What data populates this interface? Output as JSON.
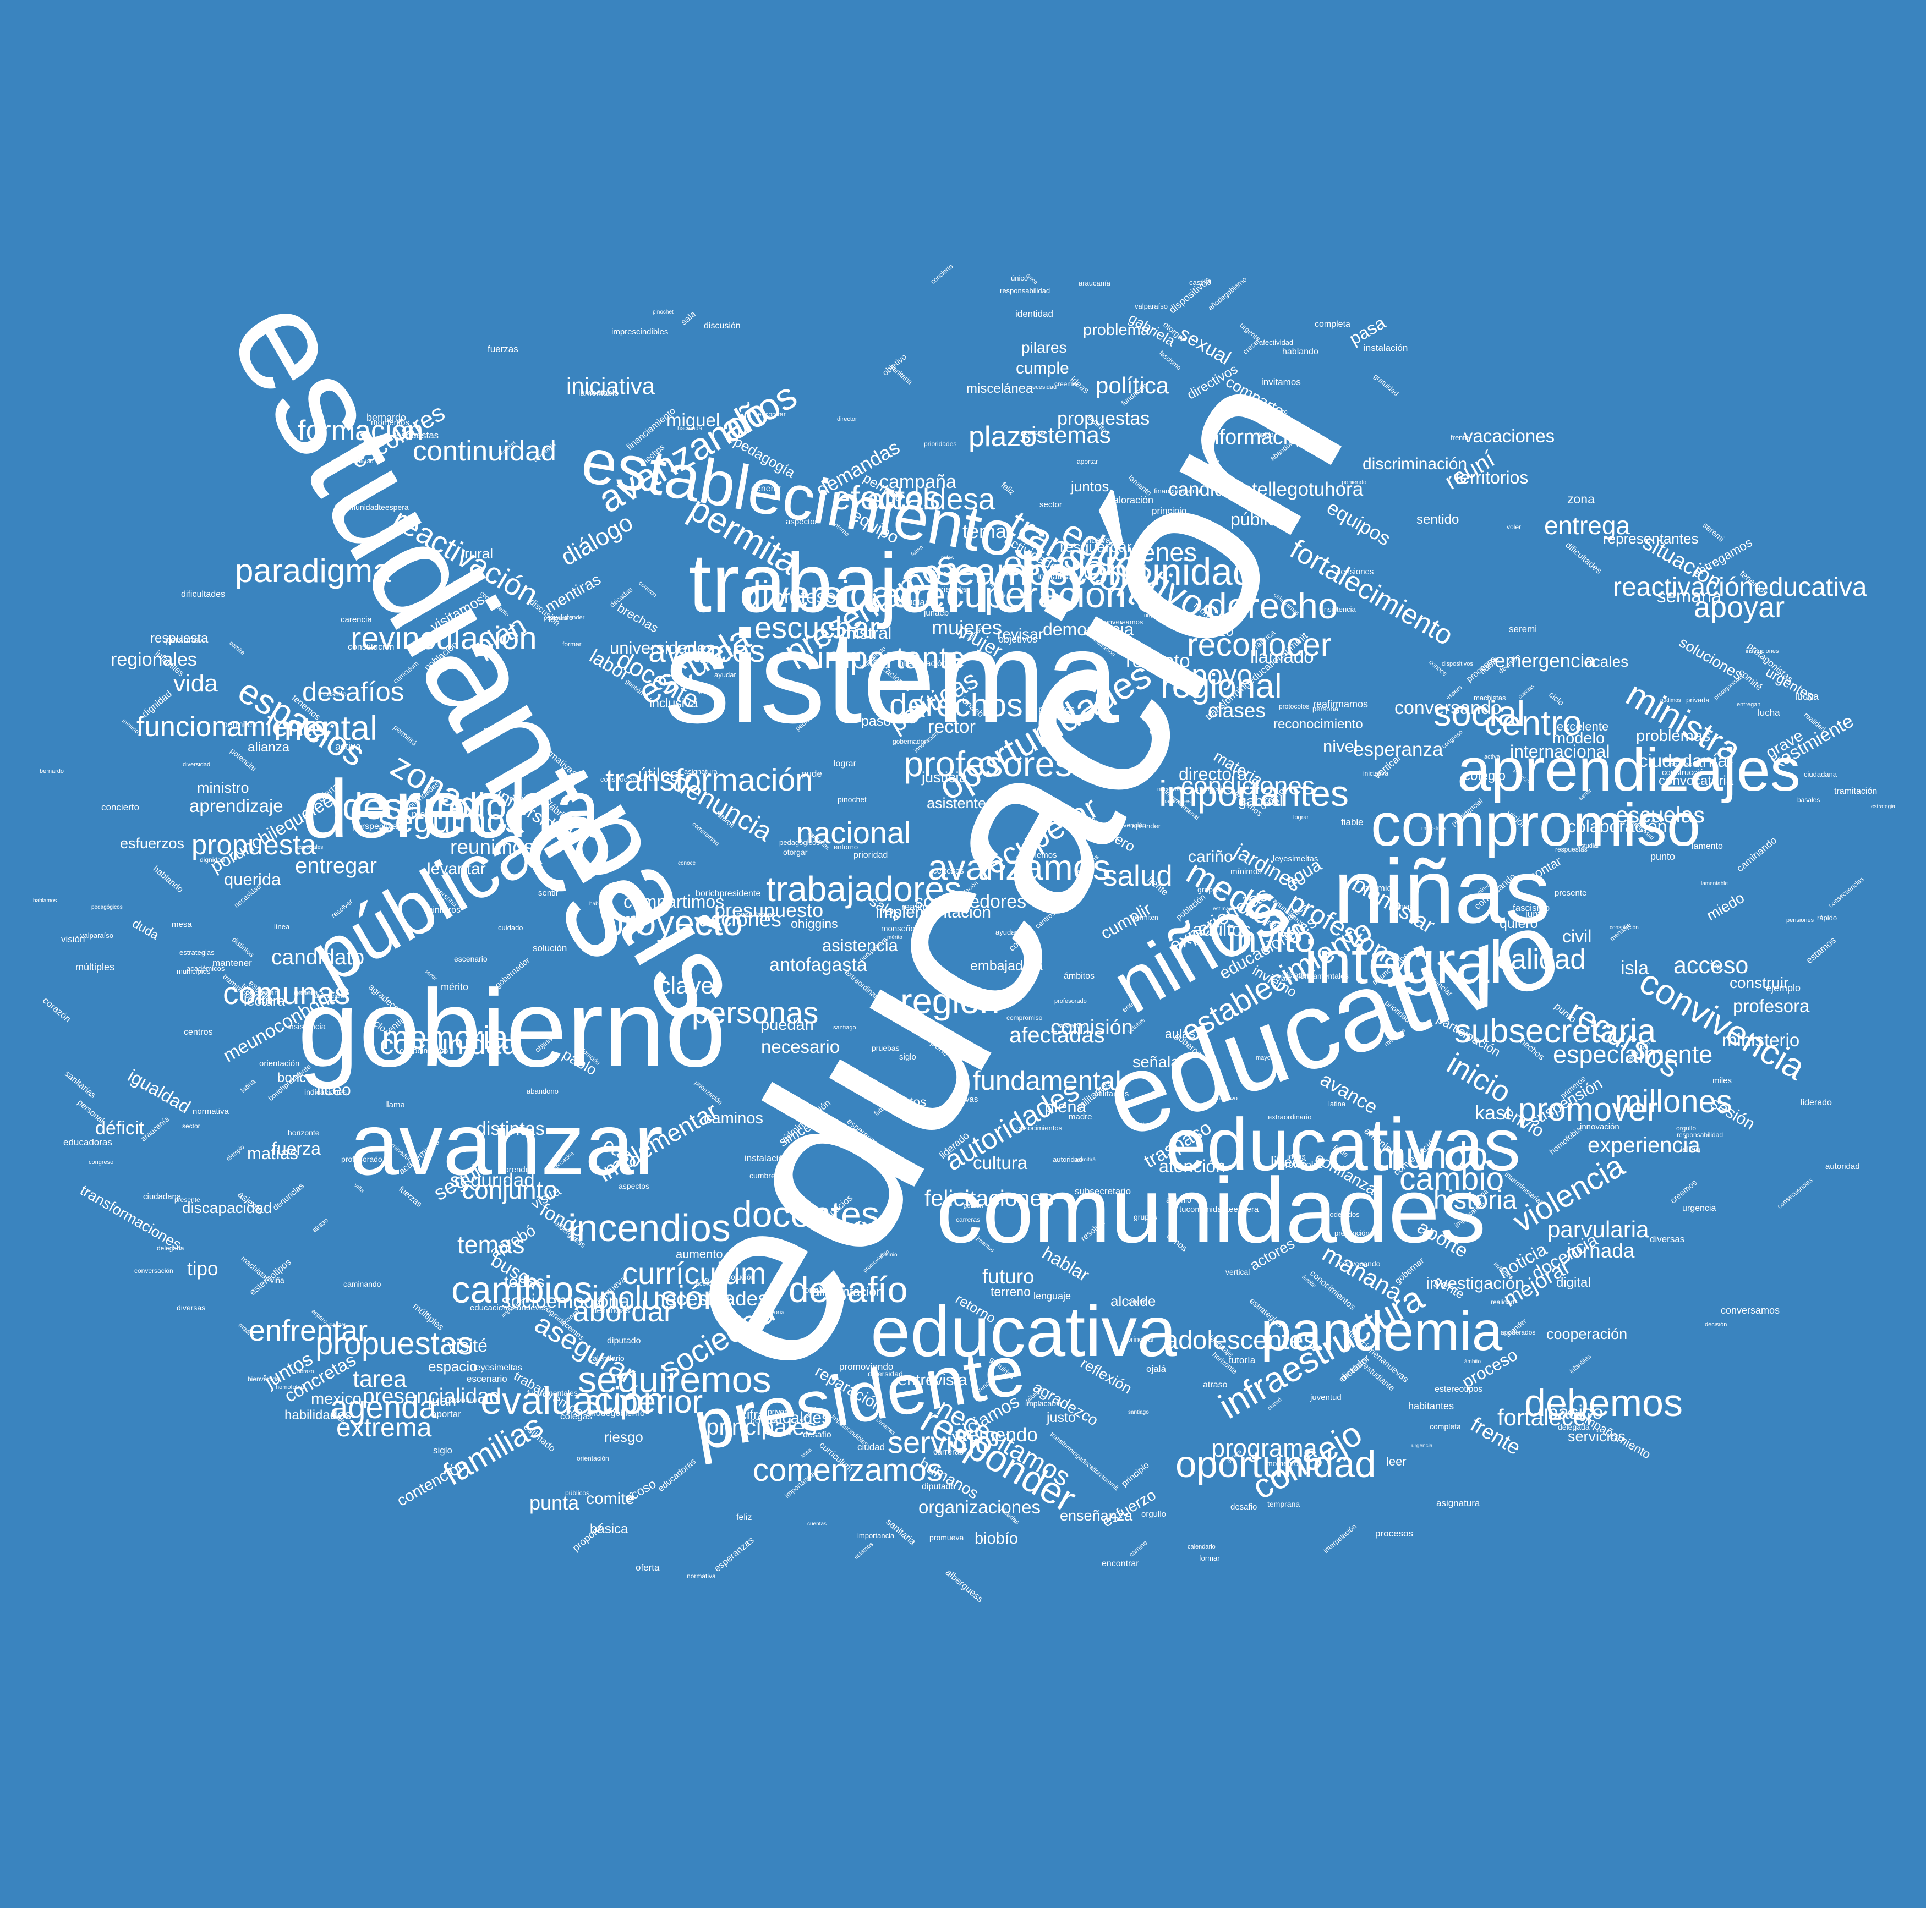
{
  "colors": {
    "background": "#3a84bf",
    "text": "#ffffff"
  },
  "title": "",
  "big_words": [
    "educación",
    "estudiantes",
    "sistema",
    "comunidades",
    "educativo",
    "gobierno",
    "país",
    "educativa",
    "niñas",
    "trabajando",
    "establecimientos",
    "avanzar",
    "derecha",
    "educativas",
    "pública",
    "presidente",
    "aprendizajes",
    "compromiso",
    "niños",
    "integral",
    "pandemia"
  ],
  "medium_words": [
    "extrema",
    "escolar",
    "reactivación",
    "desafíos",
    "desarrollo",
    "política",
    "proyecto",
    "acciones",
    "necesidades",
    "programa",
    "seguimos",
    "familias",
    "docentes",
    "infraestructura",
    "apoyo",
    "importante",
    "escuela",
    "escuelas",
    "personas",
    "educativos",
    "derecho",
    "reactivacióneducativa",
    "salud",
    "desafío",
    "mejorar",
    "años",
    "plan",
    "seguiremos",
    "profesores",
    "reunimos",
    "nacional",
    "debemos",
    "medidas",
    "derechos",
    "adolescentes",
    "autoridades",
    "afectadas",
    "superior",
    "candidato",
    "social",
    "sociedad",
    "ministra",
    "diálogo",
    "seguir",
    "políticas",
    "clases",
    "mundo",
    "formación",
    "inclusión",
    "entregar",
    "servicio",
    "entrega",
    "temas",
    "diversidad",
    "millones",
    "mañana",
    "jóvenes",
    "bienestar",
    "presentamos",
    "seamoscomunidad",
    "experiencia",
    "oportunidad",
    "comisión",
    "zonas",
    "avanzando",
    "región",
    "efectos",
    "vida",
    "conjunto",
    "calidad",
    "convivencia",
    "inicio",
    "consejo",
    "comunidad",
    "iniciativa",
    "fundamental",
    "abordar",
    "incendios",
    "fortalecer",
    "escuchar",
    "evaluación",
    "violencia",
    "paradigma",
    "escolares",
    "condiciones",
    "recursos",
    "necesitamos",
    "felicitaciones",
    "agenda",
    "alcaldesa",
    "situación",
    "asegurar",
    "jardines",
    "historia",
    "información",
    "recuperar",
    "centro",
    "tarea",
    "futuro",
    "cambio",
    "clave",
    "invito",
    "reuní",
    "mental",
    "espacios",
    "apoyar",
    "plazo",
    "acceso",
    "jornada",
    "docente",
    "importantes",
    "regional",
    "subsecretaria",
    "establecimiento",
    "promover",
    "revinculación",
    "funcionamiento",
    "avanzamos",
    "propuestas",
    "comenzamos",
    "especialmente",
    "responder",
    "permita",
    "memoria",
    "profesional",
    "oportunidades",
    "comunas",
    "trabajadores",
    "fortalecimiento",
    "presencialidad",
    "currículum",
    "continuidad",
    "recuperación",
    "principales",
    "cambios",
    "transformación",
    "reconocer",
    "propuesta",
    "frente",
    "enfrentar",
    "parvularia",
    "transporte",
    "implementar",
    "sistemas",
    "denuncia",
    "avances"
  ],
  "small_words": [
    "alimentación",
    "ministerio",
    "brechas",
    "habilidades",
    "transformaciones",
    "socioemocional",
    "reconocimiento",
    "reparación",
    "equipos",
    "terreno",
    "lectura",
    "noticia",
    "esperanza",
    "seguridad",
    "espacio",
    "asistentes",
    "biobío",
    "atención",
    "agradezco",
    "mujeres",
    "campaña",
    "problemas",
    "organizaciones",
    "aprendizaje",
    "humanos",
    "urgentes",
    "gabriela",
    "mentiras",
    "kastmiente",
    "confianza",
    "conversando",
    "modelo",
    "colaboración",
    "soluciones",
    "territorios",
    "discriminación",
    "permite",
    "representantes",
    "profesora",
    "participación",
    "inclusiva",
    "marzo",
    "universidades",
    "entregamos",
    "avance",
    "juntos",
    "cariño",
    "equipo",
    "justicia",
    "contar",
    "proceso",
    "mujer",
    "ministro",
    "boric",
    "kast",
    "locales",
    "construir",
    "hablar",
    "quiero",
    "busca",
    "civil",
    "zona",
    "rector",
    "fondo",
    "liceo",
    "liceos",
    "asistencia",
    "labor",
    "gabriel",
    "sexual",
    "caminos",
    "antofagasta",
    "visité",
    "sesión",
    "agua",
    "duda",
    "salas",
    "actores",
    "gente",
    "acoso",
    "público",
    "resguardar",
    "necesario",
    "útiles",
    "implementación",
    "regionales",
    "actividades",
    "ciudadanía",
    "respeto",
    "emergencia",
    "acompañamiento",
    "distintas",
    "igualdad",
    "respuesta",
    "candidatotellegotuhora",
    "aporte",
    "materia",
    "revisar",
    "concretas",
    "justo",
    "tema",
    "docencia",
    "comité",
    "punta",
    "aprobó",
    "querida",
    "trabajaremos",
    "cooperación",
    "suspensión",
    "directivos",
    "demandas",
    "plena",
    "traspaso",
    "cumplir",
    "democracia",
    "alcaldes",
    "señala",
    "levantar",
    "investigación",
    "ohiggins",
    "esfuerzos",
    "género",
    "mistral",
    "pasa",
    "puedan",
    "compartimos",
    "discapacidad",
    "problema",
    "entrevista",
    "pedagogía",
    "enseñanza",
    "porunchilequelee",
    "meunoconboric",
    "experiencias",
    "universidad",
    "servicios",
    "sostenedores",
    "presupuesto",
    "cultura",
    "matías",
    "educacionales",
    "miguel",
    "propuestas",
    "internacional",
    "miscelánea",
    "comparto",
    "convocatoria",
    "llamado",
    "embajadora",
    "aumento",
    "vacaciones",
    "tremendo",
    "pilares",
    "directora",
    "esfuerzo",
    "grave",
    "feliz",
    "miedo",
    "leer",
    "paso",
    "rural",
    "caso",
    "aulas",
    "fuerza",
    "simce",
    "digital",
    "adultos",
    "semana",
    "tipo",
    "déficit",
    "deber",
    "riesgo",
    "juan",
    "minutos",
    "excelente",
    "sentido",
    "visitamos",
    "profesor",
    "colegio",
    "básica",
    "invierno",
    "iniciamos",
    "contención",
    "alianza",
    "juntos",
    "retorno",
    "envío",
    "visita",
    "básico",
    "cumple",
    "reflexión",
    "mexico",
    "isla",
    "cifra",
    "nivel",
    "alcalde",
    "pablo",
    "todos"
  ],
  "tiny_words": [
    "transformingeducationsummit",
    "protocolos",
    "municipios",
    "voler",
    "múltiples",
    "necesidad",
    "formativas",
    "sanitarias",
    "castillo",
    "consecuencias",
    "imprescindibles",
    "públicos",
    "fundación",
    "insistencia",
    "cuentas",
    "sectores",
    "formar",
    "fascismo",
    "antonio",
    "perspectiva",
    "promueva",
    "miles",
    "celebramos",
    "agradecemos",
    "sentir",
    "subsecretario",
    "dificultades",
    "añodegobierno",
    "pedagógicos",
    "dictador",
    "santiago",
    "gobernador",
    "postulantes",
    "trabajo",
    "leyesimeltas",
    "asignatura",
    "estudiar",
    "gratuidad",
    "reafirmamos",
    "necesitan",
    "impulsando",
    "persona",
    "normativa",
    "encontrar",
    "calendario",
    "anunciamos",
    "bienvenida",
    "línea",
    "latina",
    "entorno",
    "interministerial",
    "concierto",
    "pude",
    "propone",
    "convocando",
    "denuncias",
    "ideas",
    "educadoras",
    "procesos",
    "respuestas",
    "seremi",
    "tutoría",
    "infantiles",
    "acerca",
    "dignidad",
    "educacionenanuevas",
    "distintos",
    "objetivo",
    "enero",
    "apoderados",
    "temprana",
    "autoridad",
    "colegas",
    "atender",
    "constitución",
    "hechos",
    "estudiante",
    "abandono",
    "proteccion",
    "congreso",
    "estrategia",
    "caminando",
    "realidad",
    "instalación",
    "director",
    "octubre",
    "pudimos",
    "comité",
    "diputado",
    "lograr",
    "fuerzas",
    "ministros",
    "construcción",
    "décadas",
    "conversamos",
    "lamentable",
    "certezas",
    "identidad",
    "completa",
    "genera",
    "junto",
    "rápido",
    "punto",
    "grupos",
    "homofobia",
    "abrazo",
    "conoce",
    "ciudadana",
    "prioridades",
    "conversación",
    "espero",
    "urgente",
    "estamos",
    "premio",
    "bernardo",
    "borichpresidente",
    "único",
    "valparaíso",
    "oferta",
    "desafio",
    "prioridad",
    "protagonistas",
    "cuidado",
    "gestión",
    "ciclo",
    "atraso",
    "ejemplo",
    "sala",
    "aportar",
    "ciudad",
    "dispositivos",
    "permitirá",
    "pensiones",
    "aprender",
    "discusión",
    "financiamiento",
    "carreras",
    "alberguess",
    "profesorado",
    "estrategias",
    "mesa",
    "prevención",
    "interpelación",
    "curriculum",
    "feliz",
    "monseñor",
    "implacable",
    "objetivos",
    "académicos",
    "sentir",
    "juventud",
    "machistas",
    "compromiso",
    "tenemos",
    "lenguaje",
    "pruebas",
    "decisión",
    "fábrica",
    "estimado",
    "visión",
    "diversas",
    "ámbito",
    "hablamos",
    "iniciativa",
    "fundamentales",
    "generar",
    "junaeb",
    "sector",
    "permiten",
    "valoración",
    "orgullo",
    "mantener",
    "personal",
    "hablando",
    "viña",
    "siglo",
    "carencia",
    "mínimos",
    "resolver",
    "urgencia",
    "espacios",
    "faltan",
    "centros",
    "mensaje",
    "delegada",
    "madre",
    "orientación",
    "presidencial",
    "basales",
    "especiales",
    "momentos",
    "tramitación",
    "conocimiento",
    "mineduc",
    "indicaciones",
    "entregan",
    "innovación",
    "promoviendo",
    "principal",
    "instituciones",
    "estereotipos",
    "habitantes",
    "tucomunidadteespera",
    "pedido",
    "mayoría",
    "solución",
    "revincular",
    "responsabilidad",
    "principio",
    "cumbre",
    "administración",
    "militantes",
    "privada",
    "gobernar",
    "aspectos",
    "liderado",
    "conocimientos",
    "mérito",
    "llama",
    "población",
    "araucanía",
    "importancia",
    "afectividad",
    "presente",
    "corazón",
    "hacienda",
    "ojalá",
    "vertical",
    "sanitaria",
    "nuevas",
    "asiento",
    "primeros",
    "crecer",
    "potenciar",
    "lucha",
    "horizonte",
    "tenemos",
    "fiable",
    "futuros",
    "escenario",
    "pinochet",
    "diversidad",
    "camino",
    "invitamos",
    "alcanzar",
    "poniendo",
    "priorización",
    "lamento",
    "extraordinario",
    "activa",
    "dimos",
    "frente",
    "creemos",
    "esperanzas",
    "ayudar",
    "otorgar",
    "ámbitos"
  ],
  "words": [
    {
      "text": "educación",
      "size": 440,
      "rotate": -60
    },
    {
      "text": "estudiantes",
      "size": 260,
      "rotate": 60
    },
    {
      "text": "sistema",
      "size": 240,
      "rotate": 0
    },
    {
      "text": "comunidades",
      "size": 168,
      "rotate": 0
    },
    {
      "text": "educativo",
      "size": 200,
      "rotate": -20
    },
    {
      "text": "gobierno",
      "size": 200,
      "rotate": 0
    },
    {
      "text": "país",
      "size": 220,
      "rotate": 60
    },
    {
      "text": "educativa",
      "size": 130,
      "rotate": 0
    },
    {
      "text": "niñas",
      "size": 165,
      "rotate": 0
    },
    {
      "text": "trabajando",
      "size": 152,
      "rotate": 0
    },
    {
      "text": "establecimientos",
      "size": 115,
      "rotate": 10
    },
    {
      "text": "avanzar",
      "size": 160,
      "rotate": 0
    },
    {
      "text": "derecha",
      "size": 150,
      "rotate": 0
    },
    {
      "text": "educativas",
      "size": 135,
      "rotate": 0
    },
    {
      "text": "pública",
      "size": 140,
      "rotate": -30
    },
    {
      "text": "presidente",
      "size": 130,
      "rotate": -10
    },
    {
      "text": "aprendizajes",
      "size": 110,
      "rotate": 0
    },
    {
      "text": "compromiso",
      "size": 110,
      "rotate": 0
    },
    {
      "text": "niños",
      "size": 140,
      "rotate": -30
    },
    {
      "text": "integral",
      "size": 110,
      "rotate": 0
    },
    {
      "text": "pandemia",
      "size": 100,
      "rotate": 0
    }
  ]
}
